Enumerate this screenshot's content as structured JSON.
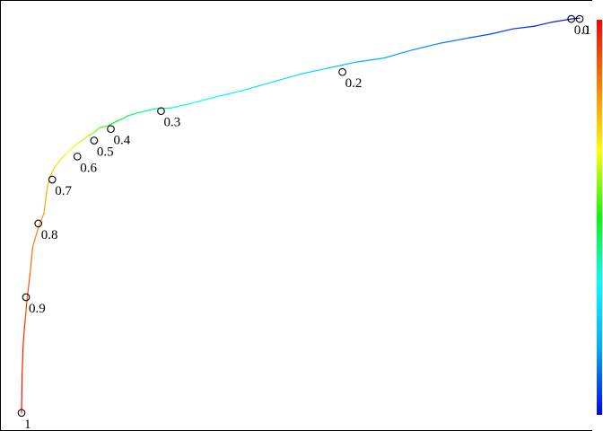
{
  "chart_data": {
    "type": "line",
    "title": "",
    "xlabel": "",
    "ylabel": "",
    "xlim": [
      0,
      1
    ],
    "ylim": [
      0,
      1
    ],
    "grid": false,
    "colorbar": {
      "placement": "right",
      "range": [
        0,
        1
      ],
      "colors": [
        "#0000ff",
        "#00aaff",
        "#00ffff",
        "#00ff00",
        "#ffff00",
        "#ff8000",
        "#ff0000"
      ]
    },
    "curve": {
      "x": [
        1.0,
        0.985,
        0.95,
        0.92,
        0.88,
        0.84,
        0.8,
        0.75,
        0.7,
        0.65,
        0.6,
        0.55,
        0.5,
        0.45,
        0.4,
        0.35,
        0.3,
        0.27,
        0.24,
        0.21,
        0.19,
        0.18,
        0.17,
        0.155,
        0.14,
        0.13,
        0.12,
        0.11,
        0.1,
        0.09,
        0.08,
        0.07,
        0.06,
        0.055,
        0.05,
        0.045,
        0.04,
        0.03,
        0.02,
        0.015,
        0.01,
        0.006,
        0.003,
        0.001,
        0.0
      ],
      "y": [
        0.995,
        0.993,
        0.985,
        0.975,
        0.968,
        0.955,
        0.945,
        0.932,
        0.915,
        0.895,
        0.885,
        0.87,
        0.855,
        0.835,
        0.815,
        0.798,
        0.78,
        0.77,
        0.768,
        0.758,
        0.75,
        0.742,
        0.736,
        0.725,
        0.72,
        0.708,
        0.7,
        0.69,
        0.68,
        0.668,
        0.655,
        0.64,
        0.622,
        0.608,
        0.595,
        0.56,
        0.505,
        0.47,
        0.42,
        0.35,
        0.29,
        0.23,
        0.18,
        0.1,
        0.005
      ],
      "cutoffs": [
        0.0,
        0.0,
        0.02,
        0.03,
        0.05,
        0.07,
        0.09,
        0.12,
        0.14,
        0.17,
        0.2,
        0.22,
        0.25,
        0.28,
        0.3,
        0.32,
        0.35,
        0.38,
        0.4,
        0.42,
        0.44,
        0.46,
        0.48,
        0.52,
        0.55,
        0.58,
        0.6,
        0.62,
        0.64,
        0.66,
        0.68,
        0.7,
        0.72,
        0.74,
        0.76,
        0.78,
        0.8,
        0.82,
        0.85,
        0.88,
        0.9,
        0.93,
        0.96,
        0.98,
        1.0
      ]
    },
    "cutoff_points": [
      {
        "label": "0.1",
        "x": 0.985,
        "y": 0.993
      },
      {
        "label": "0",
        "x": 1.0,
        "y": 0.993
      },
      {
        "label": "0.2",
        "x": 0.575,
        "y": 0.86
      },
      {
        "label": "0.3",
        "x": 0.25,
        "y": 0.762
      },
      {
        "label": "0.4",
        "x": 0.16,
        "y": 0.717
      },
      {
        "label": "0.5",
        "x": 0.13,
        "y": 0.688
      },
      {
        "label": "0.6",
        "x": 0.1,
        "y": 0.648
      },
      {
        "label": "0.7",
        "x": 0.055,
        "y": 0.59
      },
      {
        "label": "0.8",
        "x": 0.03,
        "y": 0.48
      },
      {
        "label": "0.9",
        "x": 0.008,
        "y": 0.295
      },
      {
        "label": "1",
        "x": 0.0,
        "y": 0.005
      }
    ]
  }
}
